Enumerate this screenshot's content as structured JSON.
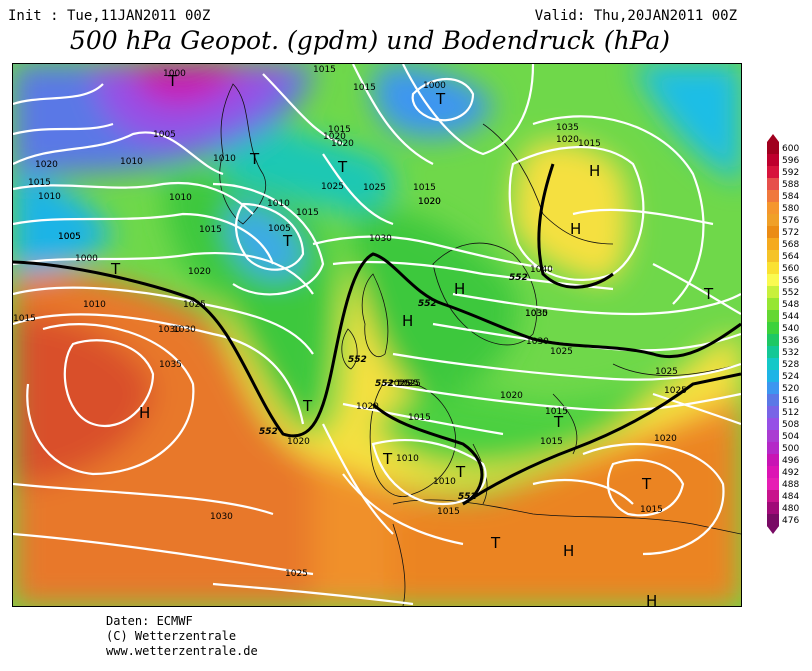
{
  "header": {
    "init": "Init : Tue,11JAN2011 00Z",
    "valid": "Valid: Thu,20JAN2011 00Z",
    "title": "500 hPa Geopot. (gpdm) und Bodendruck (hPa)"
  },
  "credits": {
    "line1": "Daten: ECMWF",
    "line2": "(C) Wetterzentrale",
    "line3": "www.wetterzentrale.de"
  },
  "legend": {
    "levels": [
      "600",
      "596",
      "592",
      "588",
      "584",
      "580",
      "576",
      "572",
      "568",
      "564",
      "560",
      "556",
      "552",
      "548",
      "544",
      "540",
      "536",
      "532",
      "528",
      "524",
      "520",
      "516",
      "512",
      "508",
      "504",
      "500",
      "496",
      "492",
      "488",
      "484",
      "480",
      "476"
    ],
    "colors": [
      "#a0001e",
      "#be002d",
      "#d7143c",
      "#e6504b",
      "#f0783c",
      "#f5962d",
      "#f0a028",
      "#eb8c14",
      "#f5aa1e",
      "#f5c328",
      "#fae132",
      "#fafa50",
      "#c8f03c",
      "#96e632",
      "#64d732",
      "#3cd23c",
      "#1ec864",
      "#14c896",
      "#14c8c8",
      "#1eb4e6",
      "#3c96f0",
      "#5a78e6",
      "#7864e6",
      "#9650e6",
      "#aa3cd2",
      "#b428c8",
      "#c814b4",
      "#dc14b4",
      "#e61eb4",
      "#c8148c",
      "#a00a78",
      "#780a64"
    ]
  },
  "map": {
    "pressure_labels": [
      "1000",
      "1000",
      "1005",
      "1010",
      "1010",
      "1015",
      "1015",
      "1015",
      "1015",
      "1020",
      "1020",
      "1005",
      "1010",
      "1010",
      "1015",
      "1020",
      "1015",
      "1010",
      "1005",
      "1015",
      "1020",
      "1025",
      "1025",
      "1020",
      "1030",
      "1035",
      "1040",
      "1035",
      "1025",
      "1020",
      "1030",
      "1035",
      "1030",
      "1025",
      "1020",
      "1015",
      "1010",
      "1010",
      "1015",
      "1020",
      "1025",
      "1030",
      "1025",
      "1020",
      "1015",
      "1025",
      "1025",
      "1020",
      "1015",
      "1030",
      "1030",
      "1025",
      "1015",
      "1005",
      "1000",
      "1010",
      "1015",
      "1020",
      "1015",
      "1025"
    ],
    "geopot_labels": [
      "552",
      "552",
      "552",
      "552",
      "552",
      "552"
    ],
    "centers": [
      "T",
      "T",
      "T",
      "T",
      "T",
      "T",
      "H",
      "H",
      "H",
      "H",
      "T",
      "T",
      "T",
      "T",
      "T",
      "H",
      "T",
      "H",
      "T",
      "H"
    ]
  }
}
